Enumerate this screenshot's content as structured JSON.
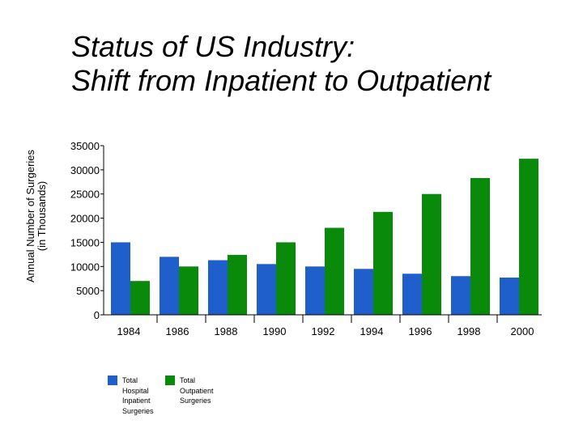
{
  "chart_data": {
    "type": "bar",
    "title_lines": [
      "Status of US Industry:",
      "Shift from Inpatient to Outpatient"
    ],
    "ylabel_lines": [
      "Annual Number of Surgeries",
      "(in Thousands)"
    ],
    "xlabel": "",
    "categories": [
      "1984",
      "1986",
      "1988",
      "1990",
      "1992",
      "1994",
      "1996",
      "1998",
      "2000"
    ],
    "ylim": [
      0,
      35000
    ],
    "yticks": [
      "0",
      "5000",
      "10000",
      "15000",
      "20000",
      "25000",
      "30000",
      "35000"
    ],
    "grid": false,
    "legend_position": "bottom-left",
    "series": [
      {
        "name": "Total Hospital Inpatient Surgeries",
        "legend_lines": [
          "Total",
          "Hospital",
          "Inpatient",
          "Surgeries"
        ],
        "color": "#1f5fcc",
        "values": [
          15000,
          12000,
          11300,
          10500,
          10000,
          9500,
          8500,
          8000,
          7700
        ]
      },
      {
        "name": "Total Outpatient Surgeries",
        "legend_lines": [
          "Total",
          "Outpatient",
          "Surgeries"
        ],
        "color": "#0a8a0a",
        "values": [
          7000,
          10000,
          12400,
          15000,
          18000,
          21300,
          25000,
          28300,
          32300
        ]
      }
    ]
  }
}
